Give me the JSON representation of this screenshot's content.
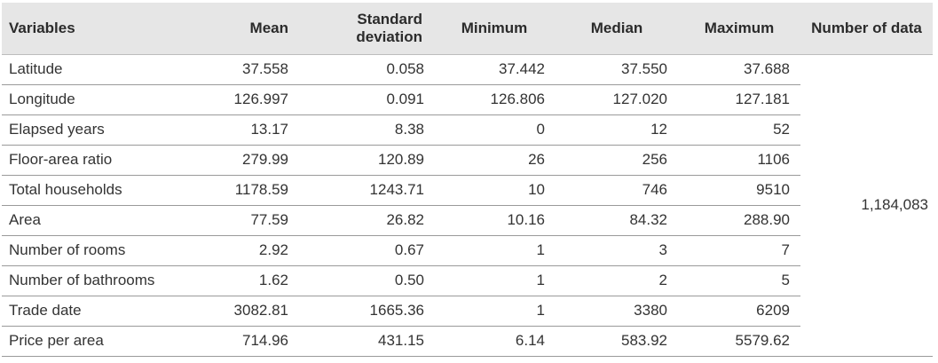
{
  "table": {
    "headers": {
      "variables": "Variables",
      "mean": "Mean",
      "std_line1": "Standard",
      "std_line2": "deviation",
      "minimum": "Minimum",
      "median": "Median",
      "maximum": "Maximum",
      "number_of_data": "Number of data"
    },
    "number_of_data_value": "1,184,083",
    "rows": [
      {
        "variable": "Latitude",
        "mean": "37.558",
        "std": "0.058",
        "min": "37.442",
        "median": "37.550",
        "max": "37.688"
      },
      {
        "variable": "Longitude",
        "mean": "126.997",
        "std": "0.091",
        "min": "126.806",
        "median": "127.020",
        "max": "127.181"
      },
      {
        "variable": "Elapsed years",
        "mean": "13.17",
        "std": "8.38",
        "min": "0",
        "median": "12",
        "max": "52"
      },
      {
        "variable": "Floor-area ratio",
        "mean": "279.99",
        "std": "120.89",
        "min": "26",
        "median": "256",
        "max": "1106"
      },
      {
        "variable": "Total households",
        "mean": "1178.59",
        "std": "1243.71",
        "min": "10",
        "median": "746",
        "max": "9510"
      },
      {
        "variable": "Area",
        "mean": "77.59",
        "std": "26.82",
        "min": "10.16",
        "median": "84.32",
        "max": "288.90"
      },
      {
        "variable": "Number of rooms",
        "mean": "2.92",
        "std": "0.67",
        "min": "1",
        "median": "3",
        "max": "7"
      },
      {
        "variable": "Number of bathrooms",
        "mean": "1.62",
        "std": "0.50",
        "min": "1",
        "median": "2",
        "max": "5"
      },
      {
        "variable": "Trade date",
        "mean": "3082.81",
        "std": "1665.36",
        "min": "1",
        "median": "3380",
        "max": "6209"
      },
      {
        "variable": "Price per area",
        "mean": "714.96",
        "std": "431.15",
        "min": "6.14",
        "median": "583.92",
        "max": "5579.62"
      }
    ]
  }
}
